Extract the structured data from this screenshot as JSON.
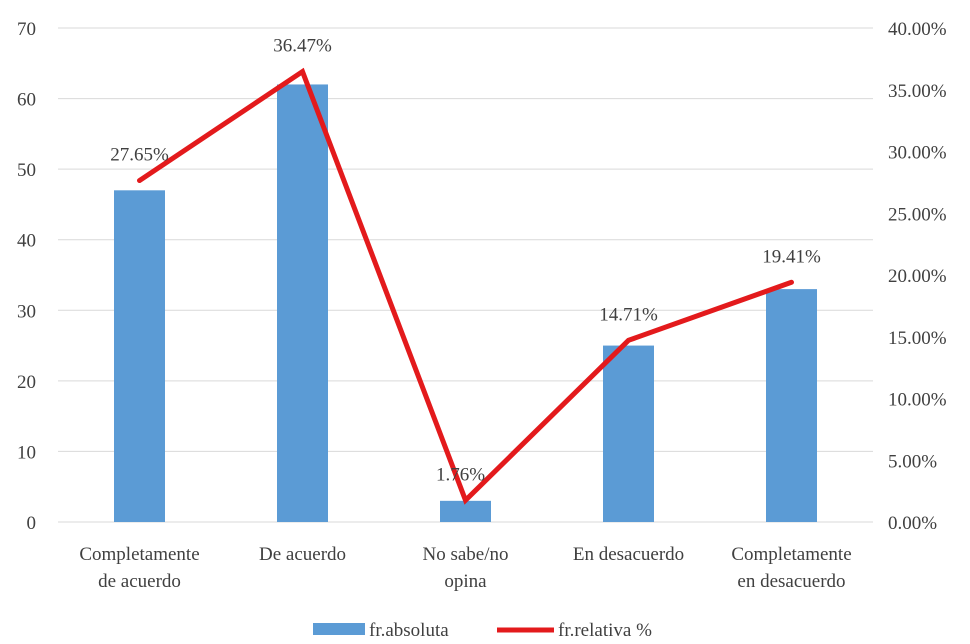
{
  "chart_data": {
    "type": "bar",
    "categories": [
      [
        "Completamente",
        "de acuerdo"
      ],
      [
        "De acuerdo"
      ],
      [
        "No sabe/no",
        "opina"
      ],
      [
        "En desacuerdo"
      ],
      [
        "Completamente",
        "en desacuerdo"
      ]
    ],
    "series": [
      {
        "name": "fr.absoluta",
        "kind": "bar",
        "axis": "left",
        "color": "#5b9bd5",
        "values": [
          47,
          62,
          3,
          25,
          33
        ]
      },
      {
        "name": "fr.relativa %",
        "kind": "line",
        "axis": "right",
        "color": "#e31a1c",
        "values": [
          27.65,
          36.47,
          1.76,
          14.71,
          19.41
        ],
        "data_labels": [
          "27.65%",
          "36.47%",
          "1.76%",
          "14.71%",
          "19.41%"
        ]
      }
    ],
    "y_left": {
      "ylim": [
        0,
        70
      ],
      "ticks": [
        "0",
        "10",
        "20",
        "30",
        "40",
        "50",
        "60",
        "70"
      ]
    },
    "y_right": {
      "ylim": [
        0,
        40
      ],
      "ticks": [
        "0.00%",
        "5.00%",
        "10.00%",
        "15.00%",
        "20.00%",
        "25.00%",
        "30.00%",
        "35.00%",
        "40.00%"
      ]
    },
    "grid": true,
    "legend_position": "bottom"
  }
}
